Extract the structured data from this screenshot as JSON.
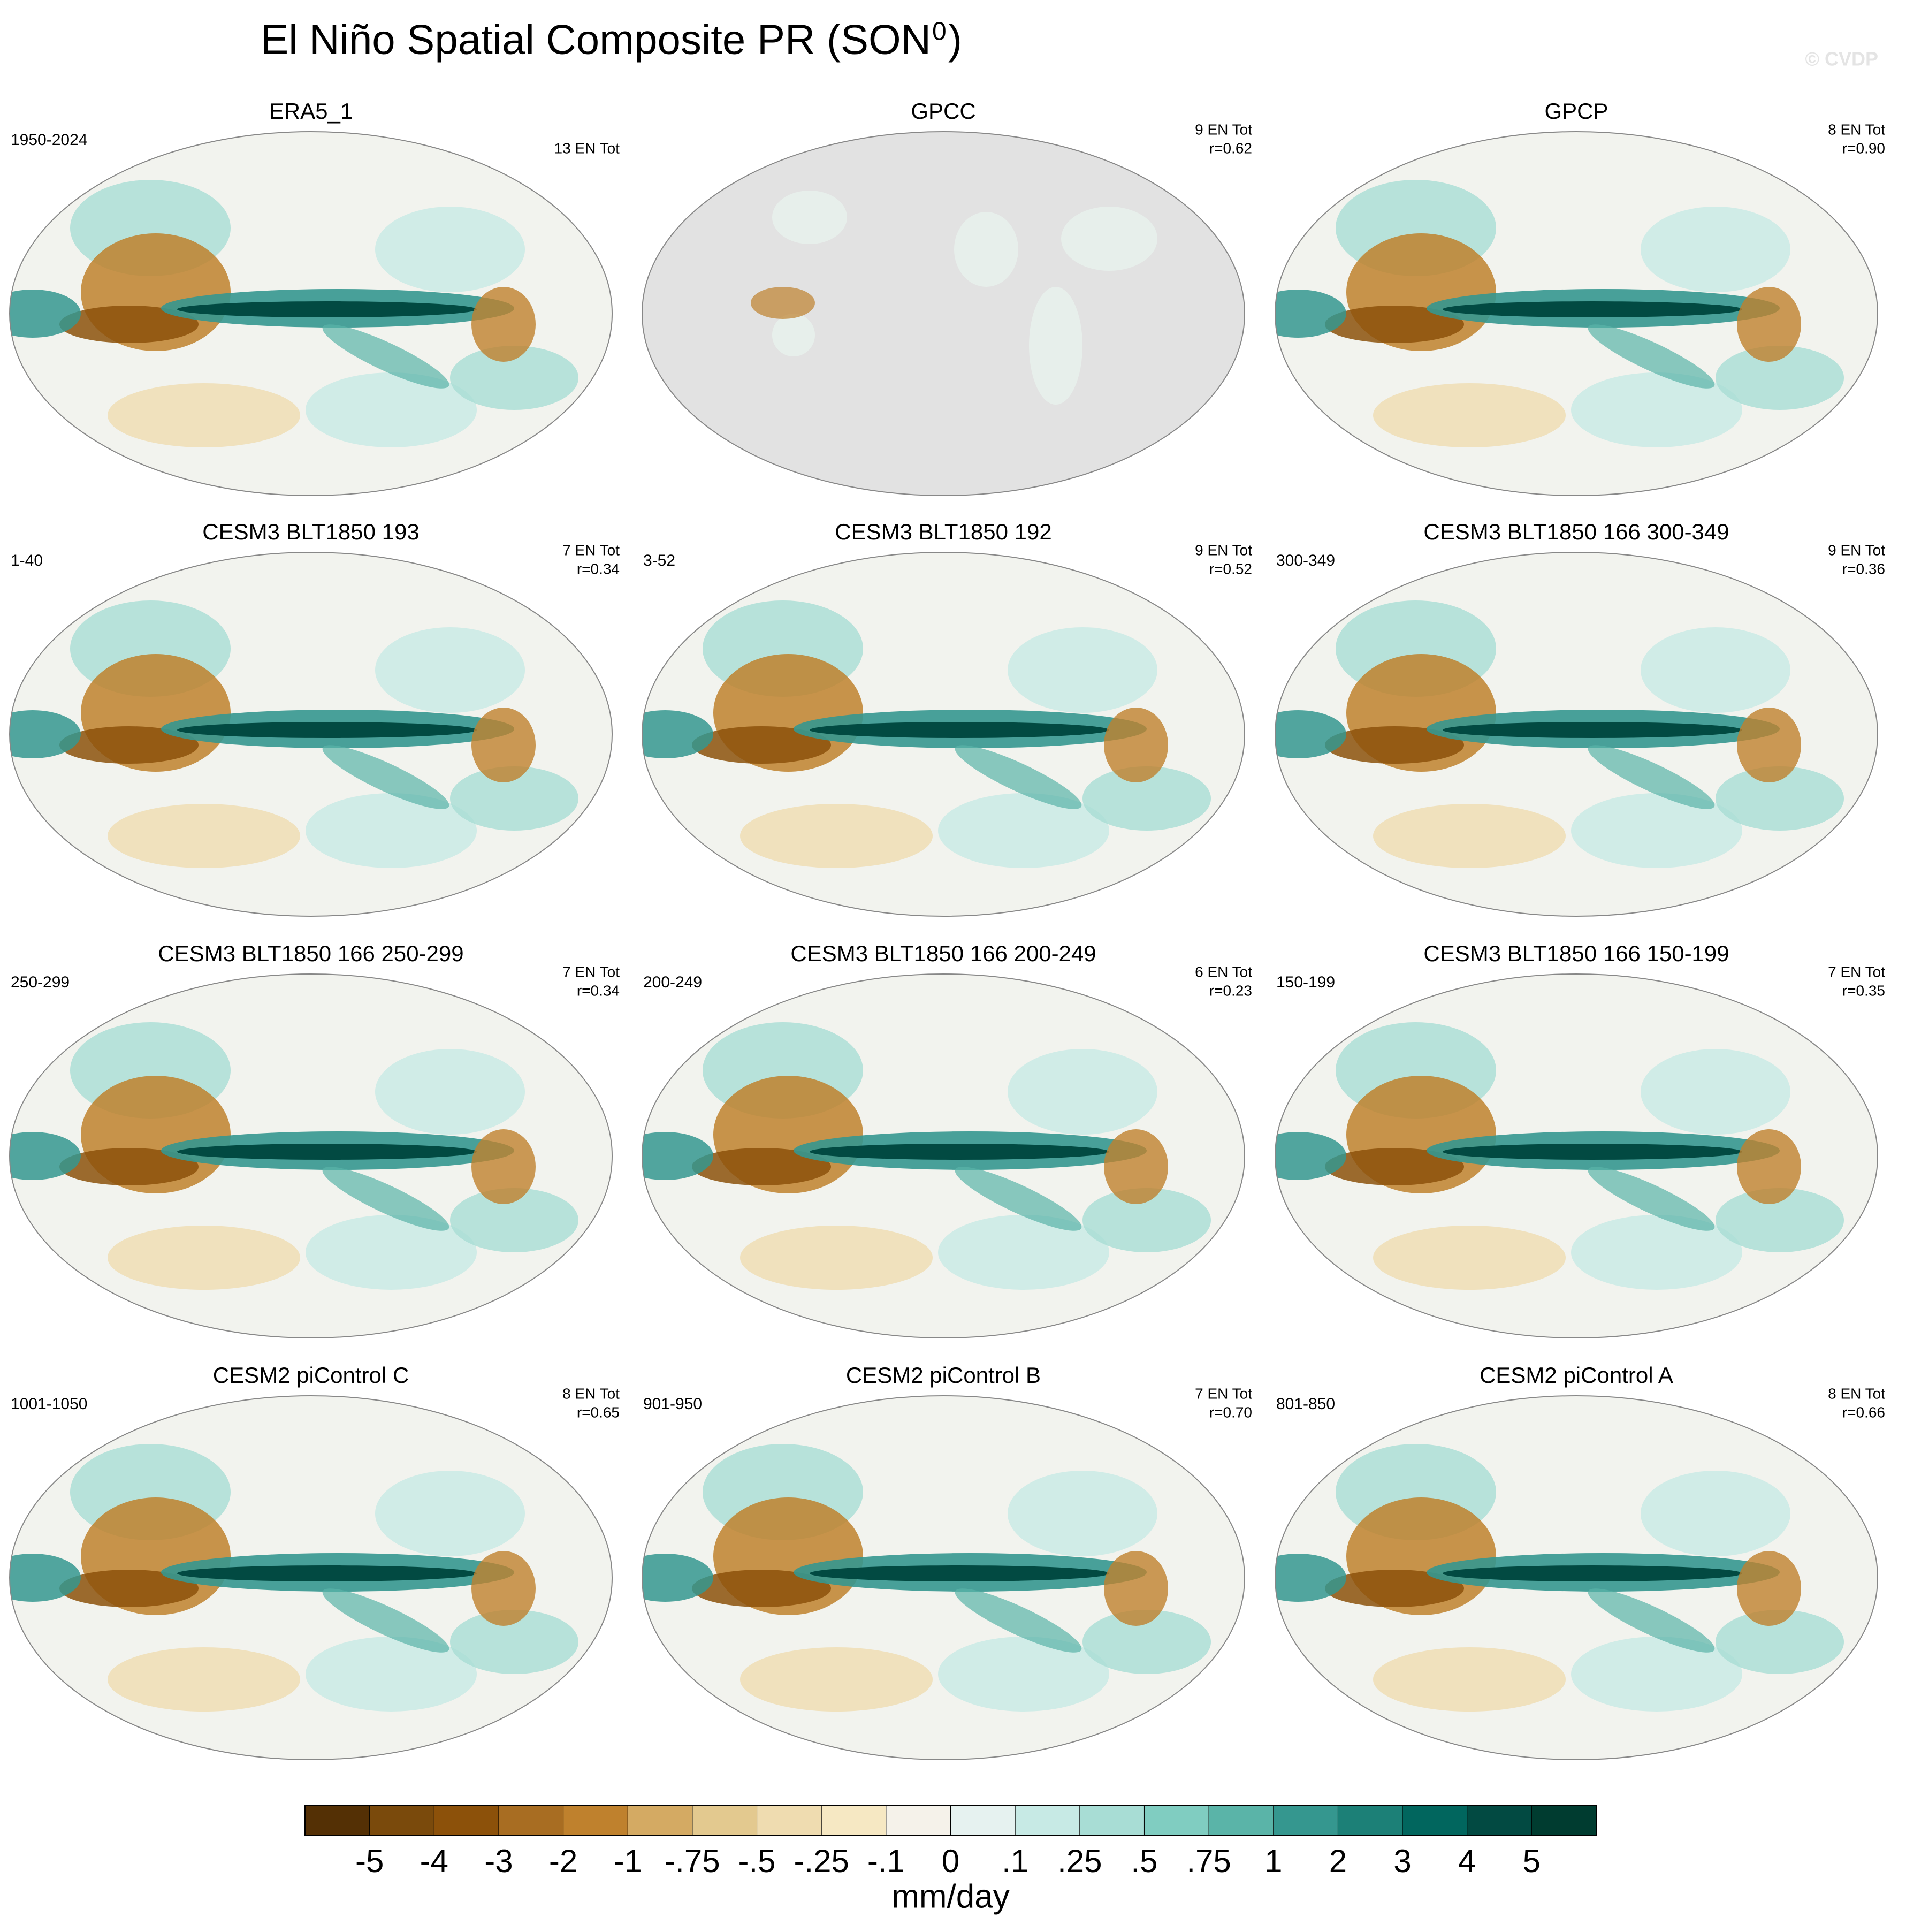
{
  "header": {
    "title": "El Niño Spatial Composite PR (SON",
    "title_superscript": "0",
    "title_end": ")",
    "watermark": "© CVDP"
  },
  "panels": [
    {
      "title": "ERA5_1",
      "years": "1950-2024",
      "count": "13 EN Tot"
    },
    {
      "title": "GPCC",
      "count": "9 EN Tot",
      "r": "r=0.62"
    },
    {
      "title": "GPCP",
      "count": "8 EN Tot",
      "r": "r=0.90"
    },
    {
      "title": "CESM3 BLT1850 193",
      "years": "1-40",
      "count": "7 EN Tot",
      "r": "r=0.34"
    },
    {
      "title": "CESM3 BLT1850 192",
      "years": "3-52",
      "count": "9 EN Tot",
      "r": "r=0.52"
    },
    {
      "title": "CESM3 BLT1850 166 300-349",
      "years": "300-349",
      "count": "9 EN Tot",
      "r": "r=0.36"
    },
    {
      "title": "CESM3 BLT1850 166 250-299",
      "years": "250-299",
      "count": "7 EN Tot",
      "r": "r=0.34"
    },
    {
      "title": "CESM3 BLT1850 166 200-249",
      "years": "200-249",
      "count": "6 EN Tot",
      "r": "r=0.23"
    },
    {
      "title": "CESM3 BLT1850 166 150-199",
      "years": "150-199",
      "count": "7 EN Tot",
      "r": "r=0.35"
    },
    {
      "title": "CESM2 piControl C",
      "years": "1001-1050",
      "count": "8 EN Tot",
      "r": "r=0.65"
    },
    {
      "title": "CESM2 piControl B",
      "years": "901-950",
      "count": "7 EN Tot",
      "r": "r=0.70"
    },
    {
      "title": "CESM2 piControl A",
      "years": "801-850",
      "count": "8 EN Tot",
      "r": "r=0.66"
    }
  ],
  "colorbar": {
    "levels": [
      -5,
      -4,
      -3,
      -2,
      -1,
      {
        "value": -0.75,
        "label": "-.75"
      },
      {
        "value": -0.5,
        "label": "-.5"
      },
      {
        "value": -0.25,
        "label": "-.25"
      },
      {
        "value": -0.1,
        "label": "-.1"
      },
      0,
      {
        "value": 0.1,
        "label": ".1"
      },
      {
        "value": 0.25,
        "label": ".25"
      },
      {
        "value": 0.5,
        "label": ".5"
      },
      {
        "value": 0.75,
        "label": ".75"
      },
      1,
      2,
      3,
      4,
      5
    ],
    "colors": [
      "#543005",
      "#7a4a0c",
      "#8c510a",
      "#a86d22",
      "#bf812d",
      "#d4aa63",
      "#e3c98f",
      "#efdcb0",
      "#f6e8c3",
      "#f5f2ea",
      "#e6f2f0",
      "#c7eae5",
      "#a8ddd5",
      "#80cdc1",
      "#5ab4a8",
      "#35978f",
      "#1c8077",
      "#01665e",
      "#024a42",
      "#003c30"
    ],
    "units": "mm/day"
  }
}
